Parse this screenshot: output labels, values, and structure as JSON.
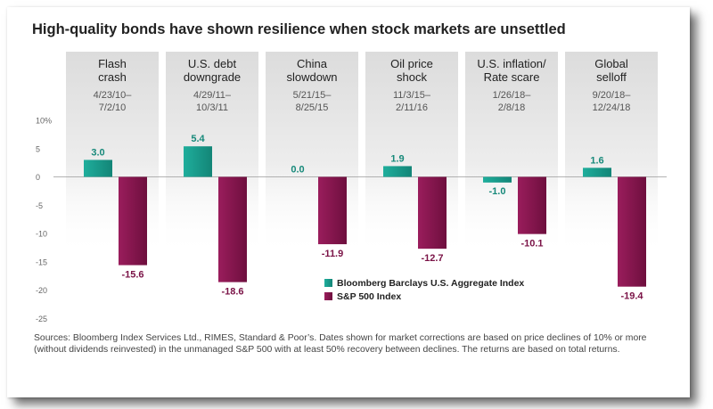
{
  "title": "High-quality bonds have shown resilience when stock markets are unsettled",
  "chart_data": {
    "type": "bar",
    "categories": [
      "Flash crash",
      "U.S. debt downgrade",
      "China slowdown",
      "Oil price shock",
      "U.S. inflation/ Rate scare",
      "Global selloff"
    ],
    "category_lines": [
      [
        "Flash",
        "crash"
      ],
      [
        "U.S. debt",
        "downgrade"
      ],
      [
        "China",
        "slowdown"
      ],
      [
        "Oil price",
        "shock"
      ],
      [
        "U.S. inflation/",
        "Rate scare"
      ],
      [
        "Global",
        "selloff"
      ]
    ],
    "date_lines": [
      [
        "4/23/10–",
        "7/2/10"
      ],
      [
        "4/29/11–",
        "10/3/11"
      ],
      [
        "5/21/15–",
        "8/25/15"
      ],
      [
        "11/3/15–",
        "2/11/16"
      ],
      [
        "1/26/18–",
        "2/8/18"
      ],
      [
        "9/20/18–",
        "12/24/18"
      ]
    ],
    "series": [
      {
        "name": "Bloomberg Barclays U.S. Aggregate Index",
        "values": [
          3.0,
          5.4,
          0.0,
          1.9,
          -1.0,
          1.6
        ],
        "labels": [
          "3.0",
          "5.4",
          "0.0",
          "1.9",
          "-1.0",
          "1.6"
        ],
        "color": "#1a9a8a"
      },
      {
        "name": "S&P 500 Index",
        "values": [
          -15.6,
          -18.6,
          -11.9,
          -12.7,
          -10.1,
          -19.4
        ],
        "labels": [
          "-15.6",
          "-18.6",
          "-11.9",
          "-12.7",
          "-10.1",
          "-19.4"
        ],
        "color": "#8a1550"
      }
    ],
    "y_ticks": [
      10,
      5,
      0,
      -5,
      -10,
      -15,
      -20,
      -25
    ],
    "y_tick_labels": [
      "10%",
      "5",
      "0",
      "-5",
      "-10",
      "-15",
      "-20",
      "-25"
    ],
    "ylim": [
      -25,
      10
    ],
    "legend_position": "bottom-center",
    "grid": false
  },
  "sources": "Sources: Bloomberg Index Services Ltd., RIMES, Standard & Poor’s. Dates shown for market corrections are based on price declines of 10% or more (without dividends reinvested) in the unmanaged S&P 500 with at least 50% recovery between declines. The returns are based on total returns."
}
